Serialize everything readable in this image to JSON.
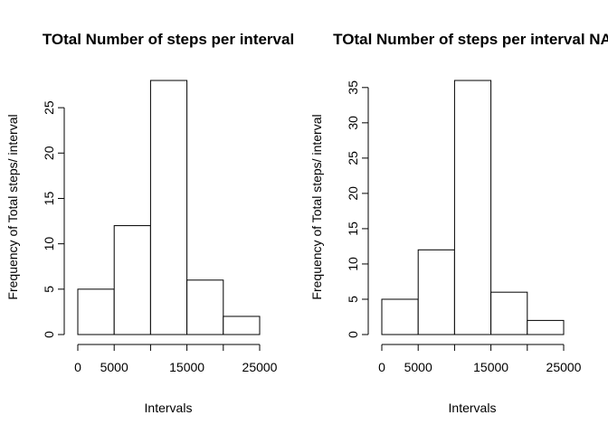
{
  "chart_data": [
    {
      "type": "bar",
      "title": "TOtal Number of steps per interval",
      "xlabel": "Intervals",
      "ylabel": "Frequency of Total steps/ interval",
      "bin_edges": [
        0,
        5000,
        10000,
        15000,
        20000,
        25000
      ],
      "values": [
        5,
        12,
        28,
        6,
        2
      ],
      "xlim": [
        0,
        25000
      ],
      "ylim": [
        0,
        28
      ],
      "x_ticks": [
        0,
        5000,
        15000,
        25000
      ],
      "x_tick_labels": [
        "0",
        "5000",
        "15000",
        "25000"
      ],
      "x_ticks_unlabeled": [
        10000,
        20000
      ],
      "y_ticks": [
        0,
        5,
        10,
        15,
        20,
        25
      ],
      "grid": false,
      "legend": "none"
    },
    {
      "type": "bar",
      "title": "TOtal Number of steps per interval NA",
      "xlabel": "Intervals",
      "ylabel": "Frequency of Total steps/ interval",
      "bin_edges": [
        0,
        5000,
        10000,
        15000,
        20000,
        25000
      ],
      "values": [
        5,
        12,
        36,
        6,
        2
      ],
      "xlim": [
        0,
        25000
      ],
      "ylim": [
        0,
        36
      ],
      "x_ticks": [
        0,
        5000,
        15000,
        25000
      ],
      "x_tick_labels": [
        "0",
        "5000",
        "15000",
        "25000"
      ],
      "x_ticks_unlabeled": [
        10000,
        20000
      ],
      "y_ticks": [
        0,
        5,
        10,
        15,
        20,
        25,
        30,
        35
      ],
      "grid": false,
      "legend": "none"
    }
  ]
}
